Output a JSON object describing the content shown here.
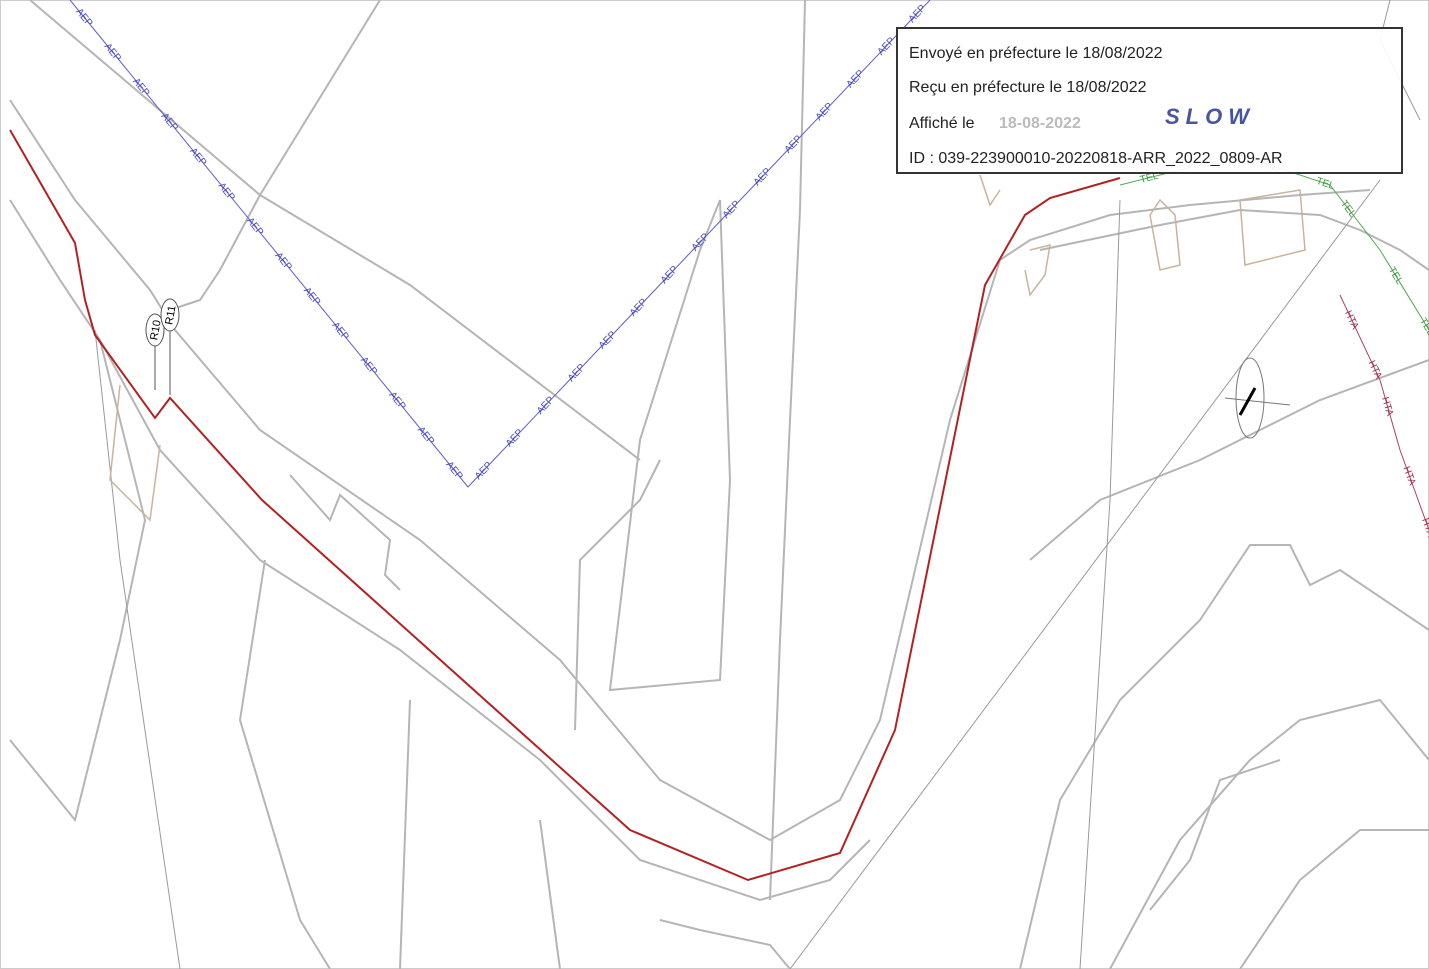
{
  "stamp": {
    "sent": "Envoyé en préfecture le 18/08/2022",
    "received": "Reçu en préfecture le 18/08/2022",
    "posted_label": "Affiché le",
    "posted_date": "18-08-2022",
    "logo": "SLOW",
    "id": "ID : 039-223900010-20220818-ARR_2022_0809-AR"
  },
  "network_labels": {
    "water": "AEP",
    "telecom": "TEL",
    "power": "HTA"
  },
  "markers": [
    "R10",
    "R11"
  ]
}
